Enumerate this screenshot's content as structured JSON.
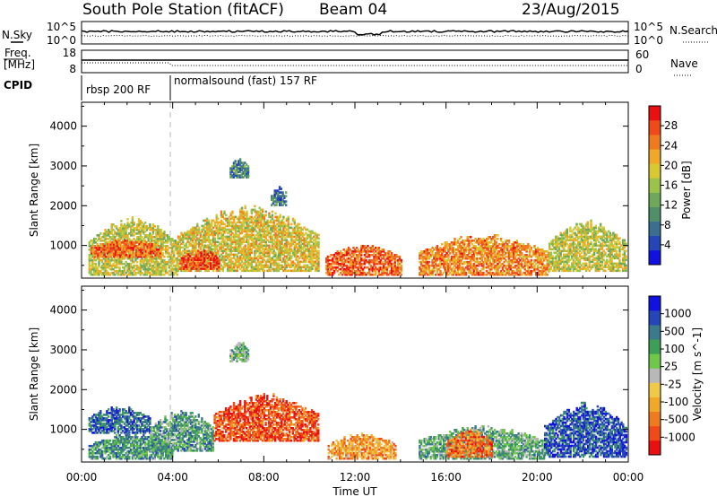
{
  "header": {
    "station": "South Pole Station (fitACF)",
    "beam": "Beam 04",
    "date": "23/Aug/2015"
  },
  "top_panels": {
    "nsky_label": "N.Sky",
    "nsky_ticks": [
      "10^5",
      "10^0"
    ],
    "nsearch_label": "N.Search",
    "nsearch_ticks": [
      "10^5",
      "10^0"
    ],
    "freq_label_1": "Freq.",
    "freq_label_2": "[MHz]",
    "freq_ticks": [
      "18",
      "8"
    ],
    "nave_label": "Nave",
    "nave_ticks": [
      "60",
      "0"
    ],
    "cpid_label": "CPID",
    "cpid_segments": [
      {
        "label": "rbsp 200 RF",
        "start_hour": 0,
        "end_hour": 4
      },
      {
        "label": "normalsound (fast) 157 RF",
        "start_hour": 4,
        "end_hour": 24
      }
    ]
  },
  "chart_data": [
    {
      "type": "heatmap",
      "ylabel": "Slant Range [km]",
      "xlabel": "Time UT",
      "xlim": [
        0,
        24
      ],
      "ylim": [
        180,
        4600
      ],
      "yticks": [
        1000,
        2000,
        3000,
        4000
      ],
      "xtick_labels": [
        "00:00",
        "04:00",
        "08:00",
        "12:00",
        "16:00",
        "20:00",
        "00:00"
      ],
      "colorbar_label": "Power [dB]",
      "colorbar_ticks": [
        "4",
        "8",
        "12",
        "16",
        "20",
        "24",
        "28"
      ],
      "colorbar_range": [
        0,
        30
      ],
      "colors": [
        "#1212e0",
        "#2545b8",
        "#3b6f92",
        "#4f8f6a",
        "#6fa85a",
        "#9bc24a",
        "#d8c832",
        "#f0a828",
        "#f07a20",
        "#f04a1a",
        "#e81010"
      ],
      "echo_regions": [
        {
          "t0": 0.3,
          "t1": 4.2,
          "r0": 250,
          "r1": 1750,
          "level": 0.55
        },
        {
          "t0": 0.4,
          "t1": 3.5,
          "r0": 700,
          "r1": 1150,
          "level": 0.82
        },
        {
          "t0": 4.2,
          "t1": 10.4,
          "r0": 350,
          "r1": 2000,
          "level": 0.6
        },
        {
          "t0": 4.3,
          "t1": 6.0,
          "r0": 400,
          "r1": 900,
          "level": 0.88
        },
        {
          "t0": 6.5,
          "t1": 7.3,
          "r0": 2700,
          "r1": 3200,
          "level": 0.3
        },
        {
          "t0": 8.3,
          "t1": 9.0,
          "r0": 2000,
          "r1": 2500,
          "level": 0.25
        },
        {
          "t0": 10.7,
          "t1": 14.0,
          "r0": 250,
          "r1": 1050,
          "level": 0.82
        },
        {
          "t0": 14.8,
          "t1": 20.5,
          "r0": 250,
          "r1": 1300,
          "level": 0.75
        },
        {
          "t0": 20.5,
          "t1": 23.9,
          "r0": 350,
          "r1": 1650,
          "level": 0.55
        }
      ]
    },
    {
      "type": "heatmap",
      "ylabel": "Slant Range [km]",
      "xlabel": "Time UT",
      "xlim": [
        0,
        24
      ],
      "ylim": [
        180,
        4600
      ],
      "yticks": [
        1000,
        2000,
        3000,
        4000
      ],
      "xtick_labels": [
        "00:00",
        "04:00",
        "08:00",
        "12:00",
        "16:00",
        "20:00",
        "00:00"
      ],
      "colorbar_label": "Velocity [m s^-1]",
      "colorbar_ticks": [
        "-1000",
        "-500",
        "-100",
        "-25",
        "25",
        "100",
        "500",
        "1000"
      ],
      "colorbar_range": [
        -1200,
        1200
      ],
      "colors": [
        "#e81010",
        "#f04a1a",
        "#f07a20",
        "#f0a828",
        "#f0c84a",
        "#b8b8b8",
        "#6fc84a",
        "#3e9e58",
        "#3b7a8a",
        "#2545b8",
        "#1212e0"
      ],
      "echo_regions": [
        {
          "t0": 0.3,
          "t1": 3.0,
          "r0": 900,
          "r1": 1600,
          "level": 0.82
        },
        {
          "t0": 0.3,
          "t1": 4.0,
          "r0": 250,
          "r1": 900,
          "level": 0.7
        },
        {
          "t0": 3.0,
          "t1": 5.8,
          "r0": 450,
          "r1": 1500,
          "level": 0.68
        },
        {
          "t0": 5.8,
          "t1": 10.4,
          "r0": 700,
          "r1": 1900,
          "level": 0.15
        },
        {
          "t0": 6.5,
          "t1": 7.3,
          "r0": 2700,
          "r1": 3200,
          "level": 0.6
        },
        {
          "t0": 10.8,
          "t1": 13.8,
          "r0": 250,
          "r1": 900,
          "level": 0.3
        },
        {
          "t0": 14.8,
          "t1": 20.3,
          "r0": 250,
          "r1": 1100,
          "level": 0.65
        },
        {
          "t0": 16.0,
          "t1": 18.0,
          "r0": 300,
          "r1": 1000,
          "level": 0.2
        },
        {
          "t0": 20.3,
          "t1": 23.9,
          "r0": 300,
          "r1": 1700,
          "level": 0.85
        }
      ]
    }
  ]
}
